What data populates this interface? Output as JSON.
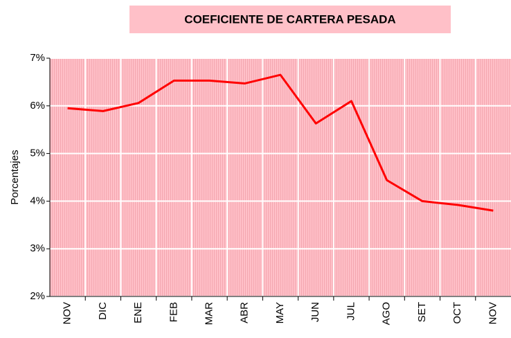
{
  "chart_data": {
    "type": "line",
    "title": "COEFICIENTE DE CARTERA PESADA",
    "y_label": "Porcentajes",
    "categories": [
      "NOV",
      "DIC",
      "ENE",
      "FEB",
      "MAR",
      "ABR",
      "MAY",
      "JUN",
      "JUL",
      "AGO",
      "SET",
      "OCT",
      "NOV"
    ],
    "series": [
      {
        "name": "Coeficiente de cartera pesada",
        "color": "#ff0000",
        "values": [
          5.95,
          5.89,
          6.06,
          6.53,
          6.53,
          6.47,
          6.65,
          5.63,
          6.1,
          4.44,
          4.0,
          3.92,
          3.8
        ]
      }
    ],
    "ylim": [
      2,
      7
    ],
    "yticks": [
      {
        "value": 2,
        "label": "2%"
      },
      {
        "value": 3,
        "label": "3%"
      },
      {
        "value": 4,
        "label": "4%"
      },
      {
        "value": 5,
        "label": "5%"
      },
      {
        "value": 6,
        "label": "6%"
      },
      {
        "value": 7,
        "label": "7%"
      }
    ],
    "grid": true
  }
}
